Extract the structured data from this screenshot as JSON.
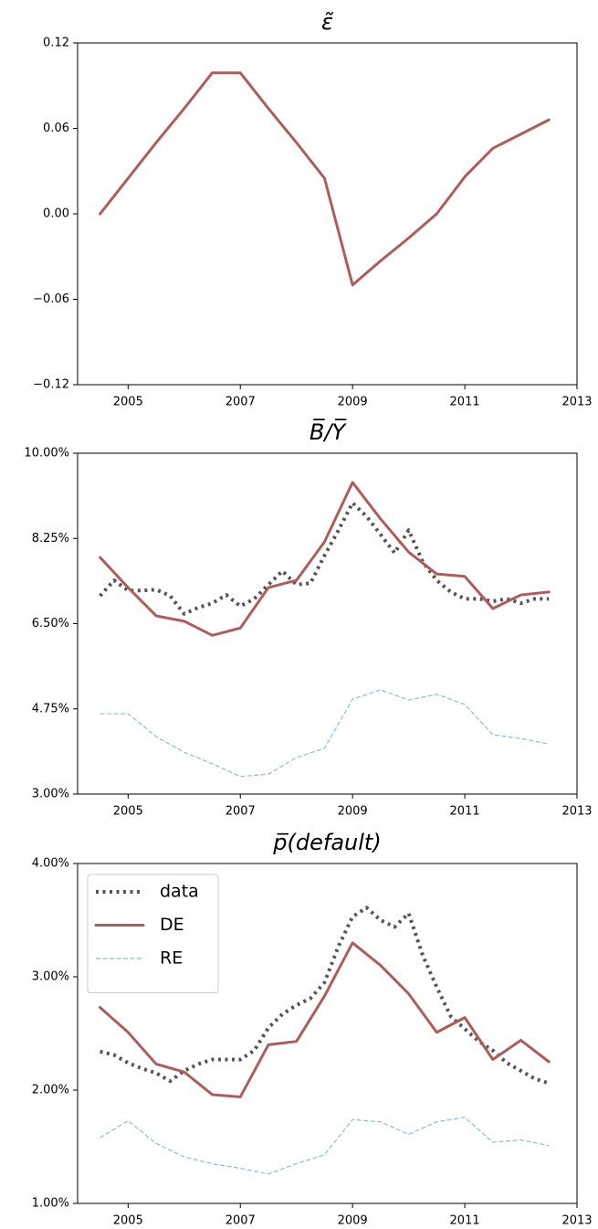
{
  "chart_data": [
    {
      "type": "line",
      "title": "ε̃",
      "xlim": [
        2004.1,
        2013
      ],
      "xticks": [
        2005,
        2007,
        2009,
        2011,
        2013
      ],
      "ylim": [
        -0.12,
        0.12
      ],
      "yticks": [
        {
          "value": -0.12,
          "label": "−0.12"
        },
        {
          "value": -0.06,
          "label": "−0.06"
        },
        {
          "value": 0,
          "label": "0.00"
        },
        0.06,
        0.12
      ],
      "series": [
        {
          "color": "#b05c5a",
          "linestyle": "solid",
          "x": [
            2004.5,
            2005,
            2005.5,
            2006,
            2006.5,
            2007,
            2007.5,
            2008,
            2008.5,
            2009,
            2009.5,
            2010,
            2010.5,
            2011,
            2011.5,
            2012,
            2012.5
          ],
          "values": [
            0,
            0.025,
            0.05,
            0.074,
            0.099,
            0.099,
            0.074,
            0.05,
            0.025,
            -0.05,
            -0.033,
            -0.017,
            0,
            0.026,
            0.046,
            0.056,
            0.066
          ]
        }
      ]
    },
    {
      "type": "line",
      "title": "B̅/Y̅",
      "xlim": [
        2004.1,
        2013
      ],
      "xticks": [
        2005,
        2007,
        2009,
        2011,
        2013
      ],
      "ylim": [
        3,
        10
      ],
      "yticks": [
        {
          "value": 3,
          "label": "3.00%"
        },
        {
          "value": 4.75,
          "label": "4.75%"
        },
        {
          "value": 6.5,
          "label": "6.50%"
        },
        {
          "value": 8.25,
          "label": "8.25%"
        },
        {
          "value": 10,
          "label": "10.00%"
        }
      ],
      "series": [
        {
          "color": "#555555",
          "linestyle": "dotted",
          "x": [
            2004.5,
            2004.75,
            2005,
            2005.25,
            2005.5,
            2005.75,
            2006,
            2006.25,
            2006.5,
            2006.75,
            2007,
            2007.25,
            2007.5,
            2007.75,
            2008,
            2008.25,
            2008.5,
            2008.75,
            2009,
            2009.25,
            2009.5,
            2009.75,
            2010,
            2010.25,
            2010.5,
            2010.75,
            2011,
            2011.25,
            2011.5,
            2011.75,
            2012,
            2012.25,
            2012.5
          ],
          "values": [
            7.07,
            7.39,
            7.18,
            7.18,
            7.2,
            7.07,
            6.7,
            6.83,
            6.92,
            7.09,
            6.86,
            7.01,
            7.3,
            7.58,
            7.3,
            7.33,
            7.9,
            8.42,
            8.98,
            8.7,
            8.33,
            7.95,
            8.42,
            7.77,
            7.39,
            7.15,
            7.01,
            7.01,
            6.96,
            7.01,
            6.92,
            7.01,
            7.01
          ]
        },
        {
          "color": "#b05c5a",
          "linestyle": "solid",
          "x": [
            2004.5,
            2005,
            2005.5,
            2006,
            2006.5,
            2007,
            2007.5,
            2008,
            2008.5,
            2009,
            2009.5,
            2010,
            2010.5,
            2011,
            2011.5,
            2012,
            2012.5
          ],
          "values": [
            7.86,
            7.24,
            6.66,
            6.55,
            6.26,
            6.41,
            7.24,
            7.39,
            8.18,
            9.4,
            8.65,
            7.97,
            7.52,
            7.47,
            6.81,
            7.09,
            7.15
          ]
        },
        {
          "color": "#88bde2",
          "linestyle": "dashed",
          "x": [
            2004.5,
            2005,
            2005.5,
            2006,
            2006.5,
            2007,
            2007.5,
            2008,
            2008.5,
            2009,
            2009.5,
            2010,
            2010.5,
            2011,
            2011.5,
            2012,
            2012.5
          ],
          "values": [
            4.65,
            4.65,
            4.18,
            3.86,
            3.62,
            3.36,
            3.41,
            3.75,
            3.94,
            4.95,
            5.14,
            4.93,
            5.05,
            4.84,
            4.22,
            4.14,
            4.03
          ]
        }
      ]
    },
    {
      "type": "line",
      "title": "p̅(default)",
      "legend": "upper left",
      "xlim": [
        2004.1,
        2013
      ],
      "xticks": [
        2005,
        2007,
        2009,
        2011,
        2013
      ],
      "ylim": [
        1,
        4
      ],
      "yticks": [
        {
          "value": 1,
          "label": "1.00%"
        },
        {
          "value": 2,
          "label": "2.00%"
        },
        {
          "value": 3,
          "label": "3.00%"
        },
        {
          "value": 4,
          "label": "4.00%"
        }
      ],
      "series": [
        {
          "name": "data",
          "color": "#555555",
          "linestyle": "dotted",
          "x": [
            2004.5,
            2004.75,
            2005,
            2005.25,
            2005.5,
            2005.75,
            2006,
            2006.25,
            2006.5,
            2006.75,
            2007,
            2007.25,
            2007.5,
            2007.75,
            2008,
            2008.25,
            2008.5,
            2008.75,
            2009,
            2009.25,
            2009.5,
            2009.75,
            2010,
            2010.25,
            2010.5,
            2010.75,
            2011,
            2011.25,
            2011.5,
            2011.75,
            2012,
            2012.25,
            2012.5
          ],
          "values": [
            2.34,
            2.31,
            2.24,
            2.19,
            2.15,
            2.08,
            2.17,
            2.23,
            2.27,
            2.27,
            2.27,
            2.35,
            2.55,
            2.67,
            2.75,
            2.81,
            2.95,
            3.27,
            3.53,
            3.61,
            3.5,
            3.44,
            3.56,
            3.19,
            2.91,
            2.65,
            2.54,
            2.43,
            2.35,
            2.24,
            2.17,
            2.1,
            2.06
          ]
        },
        {
          "name": "DE",
          "color": "#b05c5a",
          "linestyle": "solid",
          "x": [
            2004.5,
            2005,
            2005.5,
            2006,
            2006.5,
            2007,
            2007.5,
            2008,
            2008.5,
            2009,
            2009.5,
            2010,
            2010.5,
            2011,
            2011.5,
            2012,
            2012.5
          ],
          "values": [
            2.73,
            2.51,
            2.23,
            2.16,
            1.96,
            1.94,
            2.4,
            2.43,
            2.83,
            3.3,
            3.1,
            2.85,
            2.51,
            2.64,
            2.27,
            2.44,
            2.25
          ]
        },
        {
          "name": "RE",
          "color": "#88bde2",
          "linestyle": "dashed",
          "x": [
            2004.5,
            2005,
            2005.5,
            2006,
            2006.5,
            2007,
            2007.5,
            2008,
            2008.5,
            2009,
            2009.5,
            2010,
            2010.5,
            2011,
            2011.5,
            2012,
            2012.5
          ],
          "values": [
            1.58,
            1.73,
            1.53,
            1.41,
            1.35,
            1.31,
            1.26,
            1.35,
            1.43,
            1.74,
            1.72,
            1.61,
            1.72,
            1.76,
            1.54,
            1.56,
            1.51
          ]
        }
      ]
    }
  ]
}
